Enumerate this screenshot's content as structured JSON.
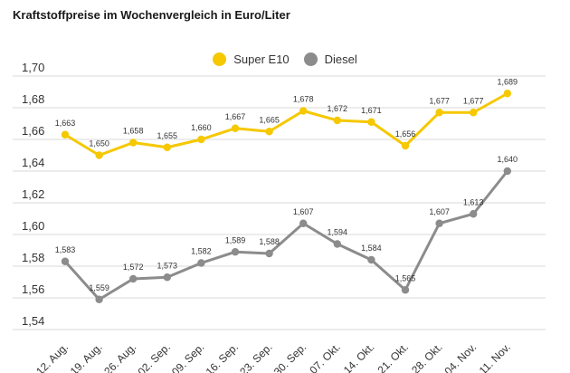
{
  "chart_data": {
    "type": "line",
    "title": "Kraftstoffpreise im Wochenvergleich in Euro/Liter",
    "categories": [
      "12. Aug.",
      "19. Aug.",
      "26. Aug.",
      "02. Sep.",
      "09. Sep.",
      "16. Sep.",
      "23. Sep.",
      "30. Sep.",
      "07. Okt.",
      "14. Okt.",
      "21. Okt.",
      "28. Okt.",
      "04. Nov.",
      "11. Nov."
    ],
    "y_ticks": [
      "1,54",
      "1,56",
      "1,58",
      "1,60",
      "1,62",
      "1,64",
      "1,66",
      "1,68",
      "1,70"
    ],
    "ylim": [
      1.54,
      1.7
    ],
    "grid": true,
    "legend_position": "top-center",
    "series": [
      {
        "name": "Super E10",
        "color": "#f5c800",
        "values": [
          1.663,
          1.65,
          1.658,
          1.655,
          1.66,
          1.667,
          1.665,
          1.678,
          1.672,
          1.671,
          1.656,
          1.677,
          1.677,
          1.689
        ],
        "labels": [
          "1,663",
          "1,650",
          "1,658",
          "1,655",
          "1,660",
          "1,667",
          "1,665",
          "1,678",
          "1,672",
          "1,671",
          "1,656",
          "1,677",
          "1,677",
          "1,689"
        ]
      },
      {
        "name": "Diesel",
        "color": "#8c8c8c",
        "values": [
          1.583,
          1.559,
          1.572,
          1.573,
          1.582,
          1.589,
          1.588,
          1.607,
          1.594,
          1.584,
          1.565,
          1.607,
          1.613,
          1.64
        ],
        "labels": [
          "1,583",
          "1,559",
          "1,572",
          "1,573",
          "1,582",
          "1,589",
          "1,588",
          "1,607",
          "1,594",
          "1,584",
          "1,565",
          "1,607",
          "1,613",
          "1,640"
        ]
      }
    ]
  }
}
